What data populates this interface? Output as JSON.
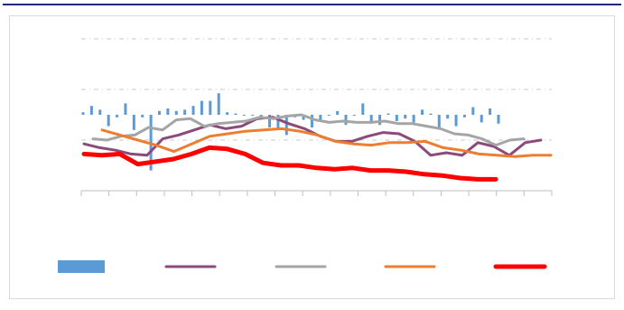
{
  "colors": {
    "top_rule": "#1f2b7b",
    "frame": "#d9d9d9",
    "gridline": "#c8c8c8",
    "axis": "#bfbfbf"
  },
  "chart_data": {
    "type": "line",
    "title": "",
    "xlabel": "",
    "ylabel": "",
    "ylim": [
      -3,
      3
    ],
    "grid": true,
    "legend_position": "bottom",
    "x_tick_count": 18,
    "series": [
      {
        "kind": "bar",
        "color": "#5b9bd5",
        "values": [
          0.1,
          0.35,
          0.2,
          -0.45,
          -0.1,
          0.45,
          -0.6,
          -0.1,
          -2.2,
          0.15,
          0.25,
          0.15,
          0.2,
          0.35,
          0.55,
          0.55,
          0.85,
          0.1,
          0.05,
          0,
          0,
          -0.15,
          -0.5,
          -0.6,
          -0.8,
          -0.1,
          -0.2,
          -0.5,
          -0.2,
          0,
          0.15,
          -0.4,
          0,
          0.45,
          -0.35,
          -0.4,
          0.05,
          -0.25,
          -0.15,
          -0.3,
          0.2,
          0.05,
          -0.5,
          -0.15,
          -0.45,
          -0.1,
          0.3,
          -0.3,
          0.25,
          -0.35
        ]
      },
      {
        "kind": "line",
        "color": "#8b4a7a",
        "width": 3,
        "values": [
          -1.15,
          -1.3,
          -1.4,
          -1.55,
          -1.6,
          -0.95,
          -0.8,
          -0.6,
          -0.4,
          -0.55,
          -0.45,
          -0.15,
          -0.1,
          -0.35,
          -0.55,
          -0.85,
          -1.05,
          -1.05,
          -0.85,
          -0.7,
          -0.75,
          -1.05,
          -1.6,
          -1.5,
          -1.6,
          -1.1,
          -1.25,
          -1.6,
          -1.1,
          -1.0
        ]
      },
      {
        "kind": "line",
        "color": "#a5a5a5",
        "width": 3,
        "values": [
          -0.95,
          -1.0,
          -0.85,
          -0.8,
          -0.5,
          -0.6,
          -0.2,
          -0.15,
          -0.45,
          -0.35,
          -0.3,
          -0.25,
          -0.1,
          -0.15,
          -0.05,
          0.0,
          -0.2,
          -0.3,
          -0.25,
          -0.3,
          -0.3,
          -0.25,
          -0.35,
          -0.35,
          -0.45,
          -0.55,
          -0.75,
          -0.8,
          -0.95,
          -1.2,
          -1.0,
          -0.95
        ]
      },
      {
        "kind": "line",
        "color": "#ed7d31",
        "width": 3,
        "values": [
          -0.6,
          -0.8,
          -1.0,
          -1.2,
          -1.45,
          -1.15,
          -0.85,
          -0.75,
          -0.65,
          -0.6,
          -0.55,
          -0.65,
          -0.8,
          -1.05,
          -1.15,
          -1.2,
          -1.1,
          -1.1,
          -1.05,
          -1.3,
          -1.4,
          -1.55,
          -1.6,
          -1.65,
          -1.6,
          -1.6
        ]
      },
      {
        "kind": "line",
        "color": "#ff0000",
        "width": 5,
        "values": [
          -1.55,
          -1.6,
          -1.55,
          -1.95,
          -1.85,
          -1.75,
          -1.55,
          -1.3,
          -1.35,
          -1.55,
          -1.9,
          -2.0,
          -2.0,
          -2.1,
          -2.15,
          -2.1,
          -2.2,
          -2.2,
          -2.25,
          -2.35,
          -2.4,
          -2.5,
          -2.55,
          -2.55
        ]
      }
    ]
  }
}
